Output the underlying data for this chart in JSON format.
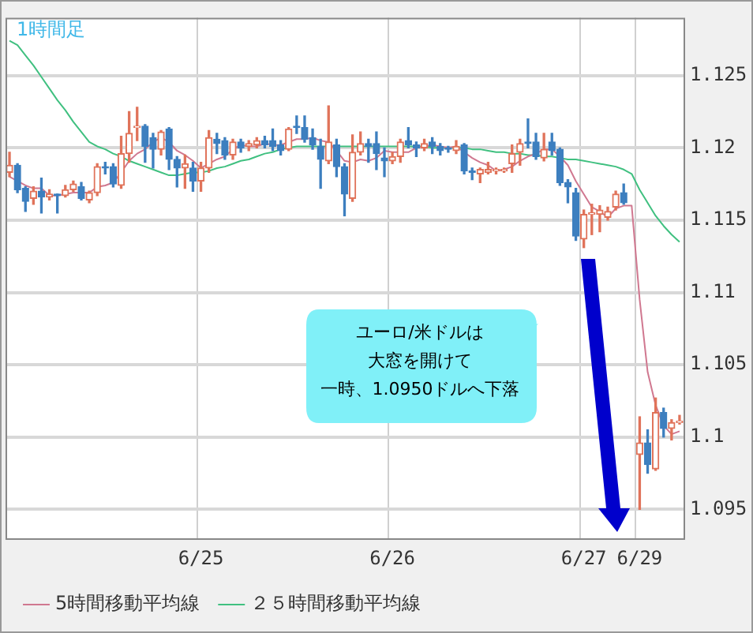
{
  "chart_data": {
    "type": "candlestick",
    "categories": [
      null,
      null,
      null,
      null,
      null,
      null,
      null,
      null,
      null,
      null,
      null,
      null,
      null,
      null,
      null,
      null,
      null,
      null,
      null,
      null,
      null,
      null,
      null,
      null,
      "6/25",
      null,
      null,
      null,
      null,
      null,
      null,
      null,
      null,
      null,
      null,
      null,
      null,
      null,
      null,
      null,
      null,
      null,
      null,
      null,
      null,
      null,
      null,
      null,
      "6/26",
      null,
      null,
      null,
      null,
      null,
      null,
      null,
      null,
      null,
      null,
      null,
      null,
      null,
      null,
      null,
      null,
      null,
      null,
      null,
      null,
      null,
      null,
      null,
      "6/27",
      null,
      null,
      null,
      null,
      null,
      null,
      "6/29",
      null,
      null,
      null,
      null,
      null
    ],
    "ohlc": [
      [
        1.1183,
        1.1197,
        1.118,
        1.1188
      ],
      [
        1.1188,
        1.1189,
        1.1169,
        1.1171
      ],
      [
        1.1172,
        1.1173,
        1.1156,
        1.1163
      ],
      [
        1.1165,
        1.1173,
        1.1161,
        1.117
      ],
      [
        1.117,
        1.1179,
        1.1155,
        1.1166
      ],
      [
        1.1166,
        1.1171,
        1.1164,
        1.1168
      ],
      [
        1.1168,
        1.1168,
        1.1155,
        1.1167
      ],
      [
        1.1167,
        1.1174,
        1.1166,
        1.1171
      ],
      [
        1.1171,
        1.1177,
        1.117,
        1.1175
      ],
      [
        1.1173,
        1.1176,
        1.1164,
        1.1165
      ],
      [
        1.1164,
        1.117,
        1.1162,
        1.1169
      ],
      [
        1.1169,
        1.1189,
        1.1167,
        1.1187
      ],
      [
        1.1187,
        1.119,
        1.1182,
        1.1186
      ],
      [
        1.1187,
        1.1189,
        1.1173,
        1.1175
      ],
      [
        1.1174,
        1.1208,
        1.1172,
        1.1196
      ],
      [
        1.1196,
        1.1225,
        1.119,
        1.121
      ],
      [
        1.1214,
        1.1228,
        1.1205,
        1.1215
      ],
      [
        1.1215,
        1.1216,
        1.119,
        1.1201
      ],
      [
        1.1207,
        1.121,
        1.1186,
        1.1199
      ],
      [
        1.1199,
        1.1212,
        1.1195,
        1.1211
      ],
      [
        1.1213,
        1.1214,
        1.1185,
        1.1192
      ],
      [
        1.1192,
        1.1194,
        1.1173,
        1.1186
      ],
      [
        1.1186,
        1.1195,
        1.1172,
        1.1189
      ],
      [
        1.1186,
        1.119,
        1.117,
        1.1177
      ],
      [
        1.1177,
        1.119,
        1.117,
        1.1186
      ],
      [
        1.1186,
        1.1212,
        1.1183,
        1.1207
      ],
      [
        1.1206,
        1.121,
        1.1196,
        1.1203
      ],
      [
        1.1205,
        1.1207,
        1.1192,
        1.1195
      ],
      [
        1.1195,
        1.1206,
        1.1192,
        1.1204
      ],
      [
        1.1204,
        1.1206,
        1.1197,
        1.12
      ],
      [
        1.1201,
        1.1205,
        1.1198,
        1.1203
      ],
      [
        1.1202,
        1.1207,
        1.12,
        1.1205
      ],
      [
        1.1205,
        1.1208,
        1.12,
        1.1202
      ],
      [
        1.1205,
        1.1213,
        1.1198,
        1.1201
      ],
      [
        1.1202,
        1.1205,
        1.1195,
        1.1198
      ],
      [
        1.1199,
        1.1214,
        1.1198,
        1.1213
      ],
      [
        1.1215,
        1.1222,
        1.121,
        1.1214
      ],
      [
        1.1214,
        1.1222,
        1.1204,
        1.1206
      ],
      [
        1.1207,
        1.1213,
        1.1199,
        1.1202
      ],
      [
        1.1201,
        1.1206,
        1.1172,
        1.1192
      ],
      [
        1.1191,
        1.1229,
        1.1189,
        1.1204
      ],
      [
        1.1202,
        1.1206,
        1.118,
        1.1187
      ],
      [
        1.1187,
        1.1189,
        1.1153,
        1.1168
      ],
      [
        1.1165,
        1.1209,
        1.1163,
        1.1197
      ],
      [
        1.1197,
        1.1211,
        1.1195,
        1.1203
      ],
      [
        1.1203,
        1.1206,
        1.119,
        1.1201
      ],
      [
        1.1203,
        1.1211,
        1.1185,
        1.1196
      ],
      [
        1.1193,
        1.12,
        1.118,
        1.1191
      ],
      [
        1.1191,
        1.1197,
        1.1189,
        1.1194
      ],
      [
        1.1194,
        1.1206,
        1.119,
        1.1204
      ],
      [
        1.1205,
        1.1214,
        1.12,
        1.1202
      ],
      [
        1.1202,
        1.1204,
        1.1194,
        1.12
      ],
      [
        1.12,
        1.1206,
        1.1198,
        1.1203
      ],
      [
        1.1204,
        1.1207,
        1.1196,
        1.1201
      ],
      [
        1.1201,
        1.1203,
        1.1195,
        1.1198
      ],
      [
        1.12,
        1.1201,
        1.1197,
        1.1199
      ],
      [
        1.1198,
        1.1205,
        1.1196,
        1.1201
      ],
      [
        1.1202,
        1.1203,
        1.1182,
        1.1184
      ],
      [
        1.1184,
        1.1186,
        1.1178,
        1.1183
      ],
      [
        1.1182,
        1.1186,
        1.1176,
        1.1185
      ],
      [
        1.1183,
        1.119,
        1.1182,
        1.1185
      ],
      [
        1.1184,
        1.1186,
        1.1182,
        1.1185
      ],
      [
        1.1184,
        1.1186,
        1.1183,
        1.1185
      ],
      [
        1.1189,
        1.1202,
        1.1183,
        1.1196
      ],
      [
        1.1197,
        1.1206,
        1.1188,
        1.1203
      ],
      [
        1.1204,
        1.122,
        1.12,
        1.1203
      ],
      [
        1.1204,
        1.121,
        1.1192,
        1.1194
      ],
      [
        1.1193,
        1.121,
        1.1191,
        1.1199
      ],
      [
        1.1204,
        1.121,
        1.1195,
        1.1198
      ],
      [
        1.1199,
        1.12,
        1.1174,
        1.1176
      ],
      [
        1.1176,
        1.1178,
        1.1162,
        1.1173
      ],
      [
        1.1169,
        1.1172,
        1.1136,
        1.1139
      ],
      [
        1.1137,
        1.1157,
        1.1131,
        1.1154
      ],
      [
        1.1154,
        1.1161,
        1.114,
        1.1155
      ],
      [
        1.1154,
        1.116,
        1.1142,
        1.1157
      ],
      [
        1.1152,
        1.1159,
        1.115,
        1.1156
      ],
      [
        1.1159,
        1.117,
        1.1157,
        1.1168
      ],
      [
        1.1169,
        1.1175,
        1.1161,
        1.1162
      ],
      null,
      [
        1.0988,
        1.1014,
        1.095,
        1.0996
      ],
      [
        1.0996,
        1.1005,
        1.0975,
        1.0981
      ],
      [
        1.0978,
        1.1027,
        1.0977,
        1.1017
      ],
      [
        1.1017,
        1.102,
        1.1,
        1.1006
      ],
      [
        1.1006,
        1.1012,
        1.0998,
        1.101
      ],
      [
        1.101,
        1.1015,
        1.1009,
        1.1011
      ]
    ],
    "colors": [
      "#e0735a",
      "#3d7fbf",
      "#3d7fbf",
      "#e0735a",
      "#3d7fbf",
      "#e0735a",
      "#3d7fbf",
      "#e0735a",
      "#e0735a",
      "#3d7fbf",
      "#e0735a",
      "#e0735a",
      "#3d7fbf",
      "#3d7fbf",
      "#e0735a",
      "#e0735a",
      "#e0735a",
      "#3d7fbf",
      "#3d7fbf",
      "#e0735a",
      "#3d7fbf",
      "#3d7fbf",
      "#e0735a",
      "#3d7fbf",
      "#e0735a",
      "#e0735a",
      "#3d7fbf",
      "#3d7fbf",
      "#e0735a",
      "#3d7fbf",
      "#e0735a",
      "#e0735a",
      "#3d7fbf",
      "#3d7fbf",
      "#3d7fbf",
      "#e0735a",
      "#3d7fbf",
      "#3d7fbf",
      "#3d7fbf",
      "#3d7fbf",
      "#e0735a",
      "#3d7fbf",
      "#3d7fbf",
      "#e0735a",
      "#e0735a",
      "#3d7fbf",
      "#3d7fbf",
      "#3d7fbf",
      "#e0735a",
      "#e0735a",
      "#3d7fbf",
      "#3d7fbf",
      "#e0735a",
      "#3d7fbf",
      "#3d7fbf",
      "#3d7fbf",
      "#e0735a",
      "#3d7fbf",
      "#3d7fbf",
      "#e0735a",
      "#e0735a",
      "#e0735a",
      "#e0735a",
      "#e0735a",
      "#e0735a",
      "#3d7fbf",
      "#3d7fbf",
      "#e0735a",
      "#3d7fbf",
      "#3d7fbf",
      "#3d7fbf",
      "#3d7fbf",
      "#e0735a",
      "#e0735a",
      "#e0735a",
      "#e0735a",
      "#e0735a",
      "#3d7fbf",
      null,
      "#e0735a",
      "#3d7fbf",
      "#e0735a",
      "#3d7fbf",
      "#e0735a",
      "#e0735a"
    ],
    "series": [
      {
        "type": "line",
        "name": "5時間移動平均線",
        "color": "#d07890",
        "values": [
          1.118,
          1.1177,
          1.1174,
          1.1172,
          1.1172,
          1.1167,
          1.1167,
          1.1168,
          1.1169,
          1.1169,
          1.1169,
          1.1173,
          1.1174,
          1.1176,
          1.1183,
          1.1191,
          1.1196,
          1.1199,
          1.1204,
          1.1207,
          1.1204,
          1.1198,
          1.1195,
          1.1191,
          1.1186,
          1.1189,
          1.1192,
          1.1194,
          1.1199,
          1.1202,
          1.1201,
          1.1201,
          1.1203,
          1.1202,
          1.1202,
          1.1204,
          1.1206,
          1.1206,
          1.1207,
          1.1205,
          1.1204,
          1.1198,
          1.1191,
          1.119,
          1.1192,
          1.1191,
          1.1193,
          1.1198,
          1.1197,
          1.1197,
          1.1197,
          1.12,
          1.1201,
          1.1202,
          1.1201,
          1.12,
          1.1201,
          1.1197,
          1.1193,
          1.119,
          1.1188,
          1.1184,
          1.1185,
          1.1187,
          1.1191,
          1.1194,
          1.1196,
          1.1199,
          1.1199,
          1.1194,
          1.1188,
          1.1177,
          1.1168,
          1.1159,
          1.1156,
          1.1152,
          1.1158,
          1.116,
          1.116,
          1.1095,
          1.1045,
          1.1022,
          1.1008,
          1.1002,
          1.1004
        ]
      },
      {
        "type": "line",
        "name": "２５時間移動平均線",
        "color": "#40c080",
        "values": [
          1.1274,
          1.1271,
          1.1264,
          1.1257,
          1.1249,
          1.1241,
          1.1233,
          1.1226,
          1.1218,
          1.1211,
          1.1204,
          1.1201,
          1.1199,
          1.1196,
          1.1194,
          1.1191,
          1.1189,
          1.1187,
          1.1185,
          1.1183,
          1.1181,
          1.1181,
          1.1182,
          1.1183,
          1.1183,
          1.1184,
          1.1186,
          1.1187,
          1.1189,
          1.1191,
          1.1192,
          1.1194,
          1.1196,
          1.1197,
          1.1199,
          1.12,
          1.1201,
          1.1201,
          1.1201,
          1.1201,
          1.1201,
          1.1201,
          1.1201,
          1.1201,
          1.1201,
          1.1201,
          1.1201,
          1.1201,
          1.1201,
          1.1201,
          1.1201,
          1.1201,
          1.1201,
          1.12,
          1.12,
          1.12,
          1.12,
          1.12,
          1.1199,
          1.1199,
          1.1198,
          1.1197,
          1.1197,
          1.1196,
          1.1196,
          1.1195,
          1.1195,
          1.1194,
          1.1194,
          1.1193,
          1.1192,
          1.1192,
          1.1191,
          1.119,
          1.1189,
          1.1188,
          1.1187,
          1.1185,
          1.1182,
          1.1171,
          1.1162,
          1.1153,
          1.1146,
          1.114,
          1.1135
        ]
      }
    ],
    "ylim": [
      1.093,
      1.129
    ],
    "yticks": [
      1.095,
      1.1,
      1.105,
      1.11,
      1.115,
      1.12,
      1.125
    ],
    "grid": true,
    "legend": "bottom",
    "annotations": [
      "1時間足",
      "ユーロ/米ドルは",
      "大窓を開けて",
      "一時、1.0950ドルへ下落"
    ]
  }
}
